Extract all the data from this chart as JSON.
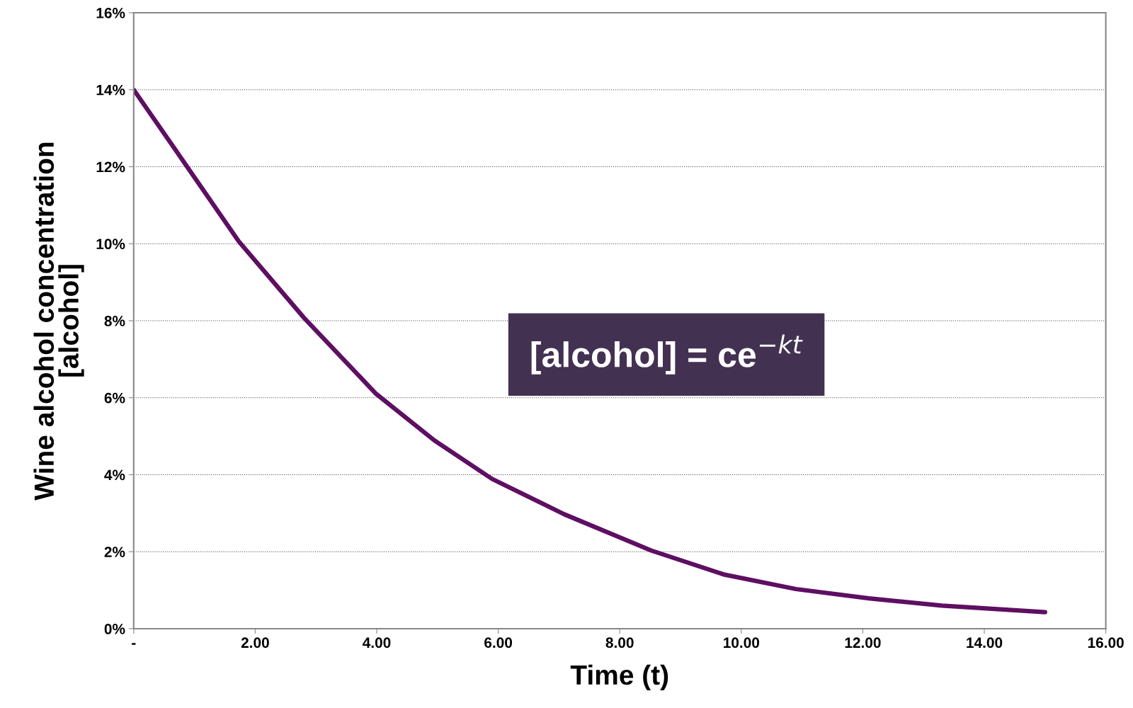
{
  "chart_data": {
    "type": "line",
    "xlabel": "Time (t)",
    "ylabel": "Wine alcohol concentration\n[alcohol]",
    "annotations": [
      "[alcohol] = ce$^{−kt}$"
    ],
    "series": [
      {
        "color": "#5e0f62",
        "x": [
          0,
          0.66,
          1.73,
          2.8,
          3.99,
          4.95,
          5.9,
          7.09,
          8.52,
          9.71,
          10.9,
          12.1,
          13.3,
          15
        ],
        "values": [
          14,
          12.5,
          10.06,
          8.08,
          6.1,
          4.89,
          3.89,
          2.97,
          2.03,
          1.41,
          1.03,
          0.79,
          0.6,
          0.43
        ]
      }
    ],
    "xlim": [
      0,
      16
    ],
    "xticks": [
      {
        "value": 0,
        "label": "-"
      },
      {
        "value": 2,
        "label": "2.00"
      },
      {
        "value": 4,
        "label": "4.00"
      },
      {
        "value": 6,
        "label": "6.00"
      },
      {
        "value": 8,
        "label": "8.00"
      },
      {
        "value": 10,
        "label": "10.00"
      },
      {
        "value": 12,
        "label": "12.00"
      },
      {
        "value": 14,
        "label": "14.00"
      },
      {
        "value": 16,
        "label": "16.00"
      }
    ],
    "ylim": [
      0,
      16
    ],
    "yticks": [
      {
        "value": 0,
        "label": "0%"
      },
      {
        "value": 2,
        "label": "2%"
      },
      {
        "value": 4,
        "label": "4%"
      },
      {
        "value": 6,
        "label": "6%"
      },
      {
        "value": 8,
        "label": "8%"
      },
      {
        "value": 10,
        "label": "10%"
      },
      {
        "value": 12,
        "label": "12%"
      },
      {
        "value": 14,
        "label": "14%"
      },
      {
        "value": 16,
        "label": "16%"
      }
    ],
    "grid": "y",
    "marker": "none",
    "line_style": "solid"
  }
}
